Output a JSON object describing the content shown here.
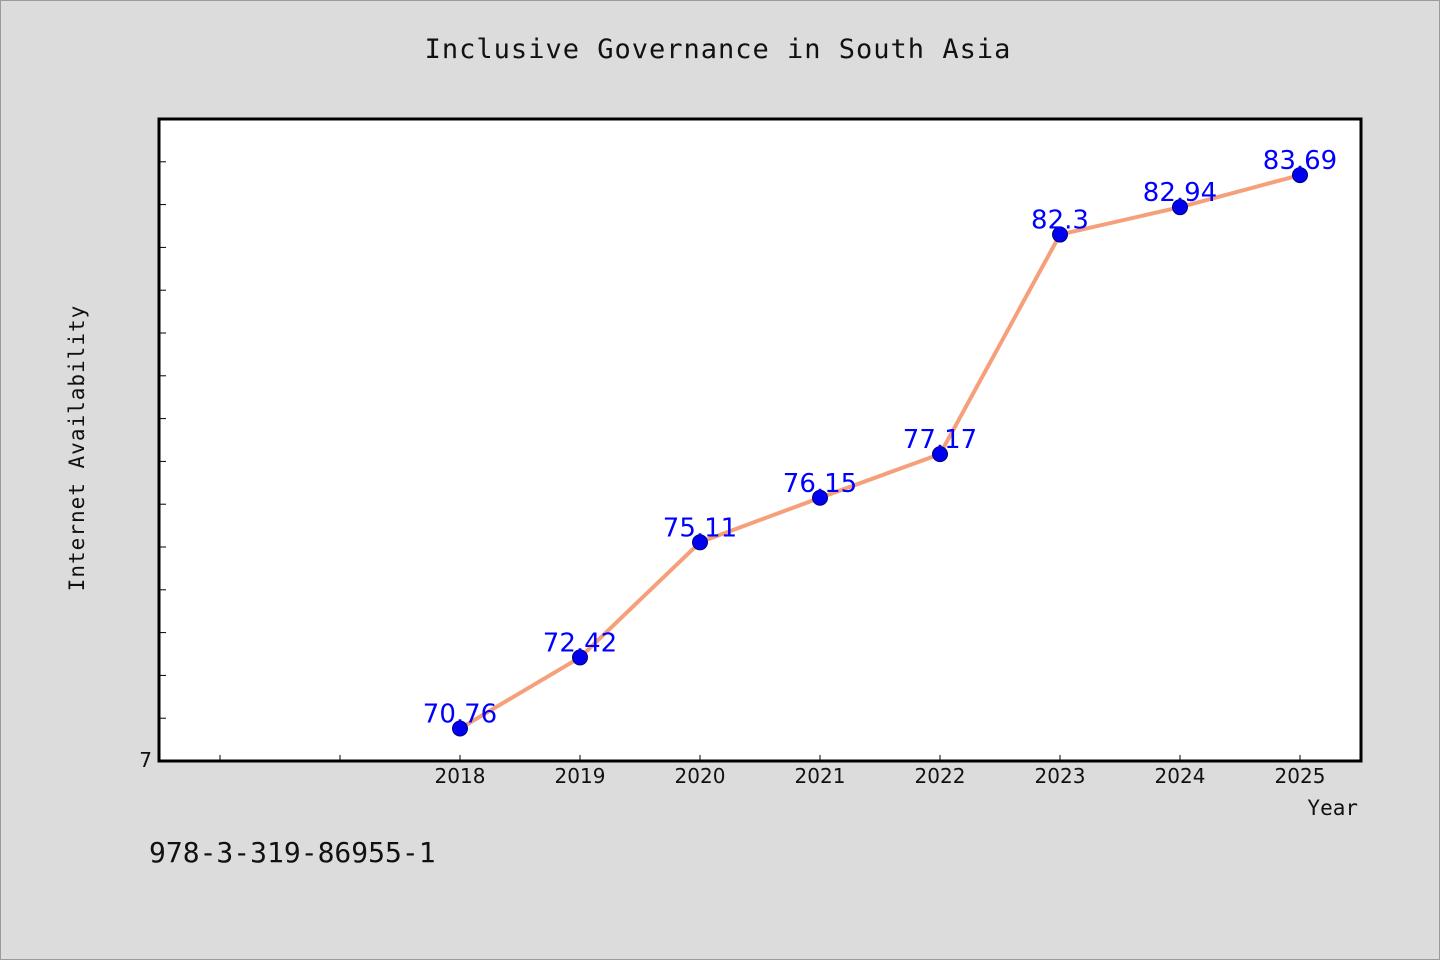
{
  "chart_data": {
    "type": "line",
    "title": "Inclusive Governance in South Asia",
    "xlabel": "Year",
    "ylabel": "Internet Availability",
    "categories": [
      "2018",
      "2019",
      "2020",
      "2021",
      "2022",
      "2023",
      "2024",
      "2025"
    ],
    "series": [
      {
        "values": [
          70.76,
          72.42,
          75.11,
          76.15,
          77.17,
          82.3,
          82.94,
          83.69
        ],
        "labels": [
          "70.76",
          "72.42",
          "75.11",
          "76.15",
          "77.17",
          "82.3",
          "82.94",
          "83.69"
        ],
        "line_color": "#f5a07a",
        "marker_color": "#0000ee"
      }
    ],
    "ylim": [
      70.0,
      85.0
    ],
    "y_tick_labels": [
      "7"
    ],
    "grid": false,
    "legend": "none"
  },
  "footer": {
    "code": "978-3-319-86955-1"
  },
  "colors": {
    "background": "#dcdcdc",
    "plot_background": "#ffffff",
    "label": "#0000ff"
  }
}
